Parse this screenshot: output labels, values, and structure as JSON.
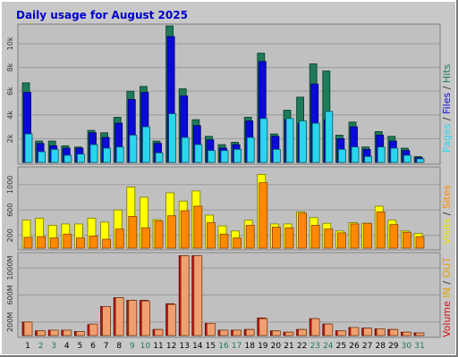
{
  "title": "Daily usage for August 2025",
  "colors": {
    "page_bg": "#c8c8c8",
    "panel_bg": "#c0c0c0",
    "hits": "#1e7a58",
    "files": "#0a0ad8",
    "pages": "#2ad6ee",
    "visits": "#ffff00",
    "sites": "#ff8800",
    "kbytes": "#cc1111",
    "kbytes_light": "#f0a070",
    "weekday_label": "#000000",
    "weekend_label": "#1e7a58"
  },
  "legends": {
    "panel1": [
      {
        "text": "Pages",
        "color": "#2ad6ee"
      },
      {
        "text": " / ",
        "color": "#333333"
      },
      {
        "text": "Files",
        "color": "#0a0ad8"
      },
      {
        "text": " / ",
        "color": "#333333"
      },
      {
        "text": "Hits",
        "color": "#1e7a58"
      }
    ],
    "panel2": [
      {
        "text": "Visits",
        "color": "#e8e800"
      },
      {
        "text": " / ",
        "color": "#333333"
      },
      {
        "text": "Sites",
        "color": "#ff8800"
      }
    ],
    "panel3": [
      {
        "text": "Volume",
        "color": "#cc1111"
      },
      {
        "text": "  ",
        "color": "#333333"
      },
      {
        "text": "IN",
        "color": "#e0a000"
      },
      {
        "text": " / ",
        "color": "#333333"
      },
      {
        "text": "OUT",
        "color": "#e0a000"
      }
    ]
  },
  "chart_data": [
    {
      "type": "bar",
      "panel": "hits_files_pages",
      "categories": [
        "1",
        "2",
        "3",
        "4",
        "5",
        "6",
        "7",
        "8",
        "9",
        "10",
        "11",
        "12",
        "13",
        "14",
        "15",
        "16",
        "17",
        "18",
        "19",
        "20",
        "21",
        "22",
        "23",
        "24",
        "25",
        "26",
        "27",
        "28",
        "29",
        "30",
        "31"
      ],
      "weekend_days": [
        "2",
        "3",
        "9",
        "10",
        "16",
        "17",
        "23",
        "24",
        "30",
        "31"
      ],
      "y_ticks": [
        "2k",
        "4k",
        "6k",
        "8k",
        "10k"
      ],
      "ylim": [
        0,
        11500
      ],
      "series": [
        {
          "name": "Hits",
          "values": [
            6700,
            1800,
            1800,
            1400,
            1300,
            2700,
            2500,
            3800,
            6000,
            6400,
            1800,
            11500,
            6200,
            3600,
            2200,
            1500,
            1700,
            3800,
            9200,
            2400,
            4400,
            5500,
            8300,
            7700,
            2300,
            3400,
            1300,
            2600,
            2200,
            1200,
            500
          ]
        },
        {
          "name": "Files",
          "values": [
            5900,
            1600,
            1400,
            1200,
            1200,
            2500,
            2100,
            3300,
            5300,
            5900,
            1600,
            10600,
            5600,
            3100,
            1900,
            1200,
            1500,
            3500,
            8500,
            2200,
            3600,
            3300,
            6600,
            3600,
            2000,
            3000,
            1100,
            2300,
            1800,
            1000,
            400
          ]
        },
        {
          "name": "Pages",
          "values": [
            2400,
            900,
            1100,
            600,
            700,
            1500,
            1200,
            1300,
            2300,
            3000,
            800,
            4100,
            2100,
            1500,
            1000,
            1000,
            1100,
            2100,
            3700,
            1100,
            3700,
            3500,
            3300,
            4300,
            1100,
            1300,
            500,
            1300,
            1200,
            600,
            300
          ]
        }
      ]
    },
    {
      "type": "bar",
      "panel": "visits_sites",
      "categories": [
        "1",
        "2",
        "3",
        "4",
        "5",
        "6",
        "7",
        "8",
        "9",
        "10",
        "11",
        "12",
        "13",
        "14",
        "15",
        "16",
        "17",
        "18",
        "19",
        "20",
        "21",
        "22",
        "23",
        "24",
        "25",
        "26",
        "27",
        "28",
        "29",
        "30",
        "31"
      ],
      "y_ticks": [
        "200",
        "600",
        "1000"
      ],
      "ylim": [
        0,
        1250
      ],
      "series": [
        {
          "name": "Visits",
          "values": [
            440,
            470,
            360,
            380,
            380,
            470,
            410,
            600,
            960,
            800,
            450,
            870,
            740,
            900,
            520,
            350,
            270,
            440,
            1160,
            380,
            380,
            570,
            480,
            390,
            270,
            400,
            390,
            660,
            440,
            270,
            230
          ]
        },
        {
          "name": "Sites",
          "values": [
            170,
            180,
            160,
            220,
            160,
            190,
            140,
            300,
            500,
            320,
            430,
            510,
            590,
            660,
            400,
            220,
            160,
            360,
            1030,
            330,
            320,
            550,
            360,
            300,
            240,
            380,
            390,
            570,
            370,
            250,
            180
          ]
        }
      ]
    },
    {
      "type": "bar",
      "panel": "volume",
      "categories": [
        "1",
        "2",
        "3",
        "4",
        "5",
        "6",
        "7",
        "8",
        "9",
        "10",
        "11",
        "12",
        "13",
        "14",
        "15",
        "16",
        "17",
        "18",
        "19",
        "20",
        "21",
        "22",
        "23",
        "24",
        "25",
        "26",
        "27",
        "28",
        "29",
        "30",
        "31"
      ],
      "y_ticks": [
        "200M",
        "600M",
        "1000M"
      ],
      "ylim": [
        0,
        1200
      ],
      "series": [
        {
          "name": "IN",
          "values": [
            200,
            70,
            80,
            80,
            60,
            160,
            430,
            560,
            520,
            520,
            90,
            470,
            1180,
            1180,
            180,
            80,
            80,
            90,
            260,
            70,
            50,
            90,
            250,
            170,
            70,
            120,
            110,
            100,
            90,
            50,
            40
          ]
        },
        {
          "name": "OUT",
          "values": [
            200,
            70,
            80,
            80,
            60,
            170,
            430,
            560,
            520,
            510,
            90,
            460,
            1180,
            1180,
            180,
            80,
            80,
            90,
            250,
            70,
            50,
            90,
            250,
            170,
            70,
            120,
            110,
            100,
            90,
            50,
            40
          ]
        }
      ]
    }
  ]
}
